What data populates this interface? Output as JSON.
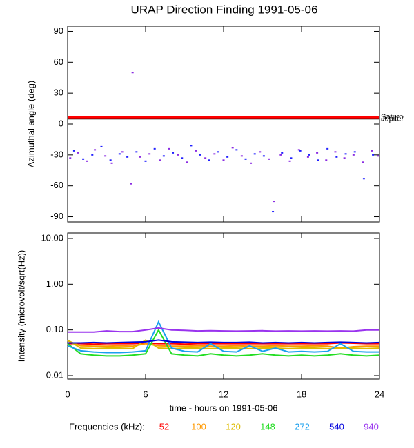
{
  "chart_data": [
    {
      "type": "scatter",
      "title": "URAP Direction Finding  1991-05-06",
      "ylabel": "Azimuthal angle (deg)",
      "xlim": [
        0,
        24
      ],
      "xticks": [
        0,
        6,
        12,
        18,
        24
      ],
      "ylim": [
        -95,
        95
      ],
      "yticks": [
        -90,
        -60,
        -30,
        0,
        30,
        60,
        90
      ],
      "annotations": [
        {
          "text": "Saturn",
          "value": 6.5,
          "color": "#ff0000"
        },
        {
          "text": "Jupiter",
          "value": 5,
          "color": "#000000"
        }
      ],
      "series": [
        {
          "color": "#8a2be2",
          "x": [
            0.2,
            0.8,
            1.5,
            2.1,
            2.9,
            3.4,
            4.2,
            4.9,
            5.0,
            5.6,
            6.3,
            7.1,
            7.8,
            8.5,
            9.2,
            9.9,
            10.6,
            11.3,
            12.0,
            12.7,
            13.4,
            14.1,
            14.8,
            15.5,
            15.9,
            16.4,
            17.1,
            17.8,
            18.5,
            19.2,
            19.9,
            20.6,
            21.3,
            22.0,
            22.7,
            23.4,
            23.9
          ],
          "values": [
            -33,
            -28,
            -36,
            -25,
            -31,
            -38,
            -27,
            -58,
            50,
            -32,
            -29,
            -35,
            -24,
            -30,
            -37,
            -26,
            -33,
            -29,
            -35,
            -23,
            -31,
            -38,
            -27,
            -34,
            -75,
            -30,
            -36,
            -25,
            -32,
            -28,
            -35,
            -27,
            -33,
            -30,
            -37,
            -26,
            -31
          ]
        },
        {
          "color": "#2020ff",
          "x": [
            0.5,
            1.2,
            1.9,
            2.6,
            3.3,
            4.0,
            4.6,
            5.3,
            6.0,
            6.7,
            7.4,
            8.1,
            8.8,
            9.5,
            10.2,
            10.9,
            11.6,
            12.3,
            13.0,
            13.7,
            14.4,
            15.1,
            15.8,
            16.5,
            17.2,
            17.9,
            18.6,
            19.3,
            20.0,
            20.7,
            21.4,
            22.1,
            22.8,
            23.5
          ],
          "values": [
            -26,
            -34,
            -30,
            -22,
            -35,
            -29,
            -32,
            -27,
            -36,
            -24,
            -31,
            -28,
            -33,
            -21,
            -30,
            -35,
            -27,
            -32,
            -25,
            -34,
            -29,
            -31,
            -85,
            -28,
            -33,
            -26,
            -30,
            -35,
            -24,
            -32,
            -29,
            -27,
            -53,
            -30
          ]
        }
      ]
    },
    {
      "type": "line",
      "ylabel": "Intensity (microvolt/sqrt(Hz))",
      "xlabel": "time - hours on 1991-05-06",
      "log_scale": true,
      "legend_title": "Frequencies (kHz):",
      "xlim": [
        0,
        24
      ],
      "xticks": [
        0,
        6,
        12,
        18,
        24
      ],
      "ylim": [
        0.0084,
        13.2
      ],
      "yticks": [
        {
          "value": 0.01,
          "label": "0.01"
        },
        {
          "value": 0.1,
          "label": "0.10"
        },
        {
          "value": 1,
          "label": "1.00"
        },
        {
          "value": 10,
          "label": "10.00"
        }
      ],
      "x": [
        0,
        1,
        2,
        3,
        4,
        5,
        6,
        7,
        8,
        9,
        10,
        11,
        12,
        13,
        14,
        15,
        16,
        17,
        18,
        19,
        20,
        21,
        22,
        23,
        24
      ],
      "series": [
        {
          "name": "52",
          "color": "#ff0000",
          "values": [
            0.05,
            0.05,
            0.049,
            0.05,
            0.05,
            0.05,
            0.051,
            0.05,
            0.05,
            0.049,
            0.05,
            0.05,
            0.05,
            0.05,
            0.05,
            0.05,
            0.05,
            0.05,
            0.05,
            0.05,
            0.05,
            0.052,
            0.051,
            0.05,
            0.05
          ]
        },
        {
          "name": "100",
          "color": "#ff9900",
          "values": [
            0.058,
            0.045,
            0.044,
            0.044,
            0.045,
            0.044,
            0.05,
            0.045,
            0.044,
            0.044,
            0.045,
            0.044,
            0.044,
            0.045,
            0.044,
            0.044,
            0.045,
            0.044,
            0.044,
            0.045,
            0.044,
            0.04,
            0.043,
            0.044,
            0.044
          ]
        },
        {
          "name": "120",
          "color": "#ddbb00",
          "values": [
            0.06,
            0.04,
            0.039,
            0.04,
            0.04,
            0.039,
            0.06,
            0.04,
            0.039,
            0.04,
            0.04,
            0.039,
            0.04,
            0.04,
            0.039,
            0.04,
            0.04,
            0.039,
            0.04,
            0.04,
            0.039,
            0.04,
            0.04,
            0.039,
            0.04
          ]
        },
        {
          "name": "148",
          "color": "#22dd22",
          "values": [
            0.05,
            0.03,
            0.028,
            0.027,
            0.027,
            0.028,
            0.03,
            0.1,
            0.03,
            0.028,
            0.027,
            0.03,
            0.028,
            0.027,
            0.028,
            0.03,
            0.028,
            0.027,
            0.028,
            0.027,
            0.028,
            0.03,
            0.028,
            0.027,
            0.028
          ]
        },
        {
          "name": "272",
          "color": "#1aa0ee",
          "values": [
            0.045,
            0.035,
            0.033,
            0.032,
            0.032,
            0.033,
            0.035,
            0.15,
            0.04,
            0.034,
            0.033,
            0.05,
            0.034,
            0.033,
            0.045,
            0.034,
            0.04,
            0.033,
            0.034,
            0.033,
            0.034,
            0.05,
            0.034,
            0.033,
            0.033
          ]
        },
        {
          "name": "540",
          "color": "#0000dd",
          "values": [
            0.052,
            0.052,
            0.053,
            0.052,
            0.053,
            0.054,
            0.055,
            0.06,
            0.055,
            0.054,
            0.053,
            0.054,
            0.053,
            0.053,
            0.054,
            0.052,
            0.053,
            0.052,
            0.053,
            0.052,
            0.053,
            0.054,
            0.053,
            0.052,
            0.053
          ]
        },
        {
          "name": "940",
          "color": "#9933ee",
          "values": [
            0.09,
            0.09,
            0.09,
            0.095,
            0.092,
            0.092,
            0.1,
            0.11,
            0.1,
            0.098,
            0.095,
            0.096,
            0.095,
            0.094,
            0.095,
            0.096,
            0.094,
            0.095,
            0.094,
            0.095,
            0.094,
            0.095,
            0.094,
            0.1,
            0.1
          ]
        }
      ]
    }
  ]
}
